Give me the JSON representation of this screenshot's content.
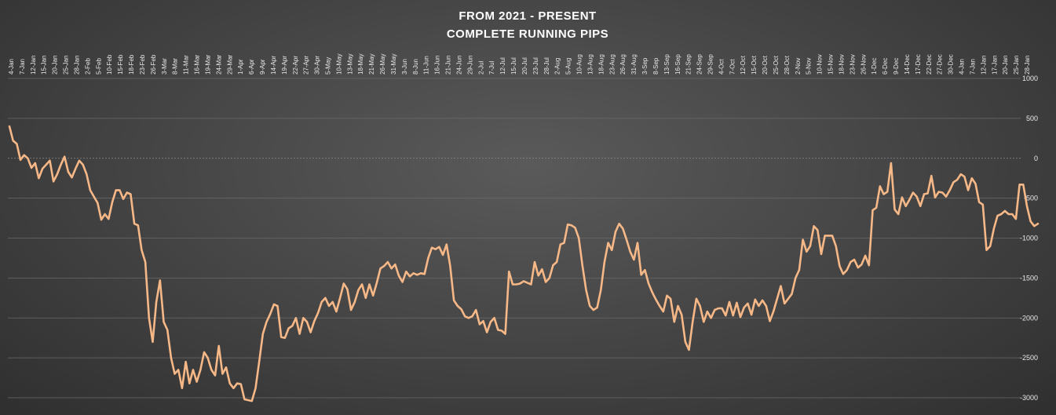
{
  "chart_data": {
    "type": "line",
    "title": "FROM 2021 - PRESENT",
    "subtitle": "COMPLETE RUNNING PIPS",
    "xlabel": "",
    "ylabel": "",
    "ylim": [
      -3000,
      1000
    ],
    "yticks": [
      1000,
      500,
      0,
      -500,
      -1000,
      -1500,
      -2000,
      -2500,
      -3000
    ],
    "grid": true,
    "legend": "none",
    "line_color": "#F7B888",
    "x_tick_labels": [
      "4-Jan",
      "7-Jan",
      "12-Jan",
      "15-Jan",
      "20-Jan",
      "25-Jan",
      "28-Jan",
      "2-Feb",
      "5-Feb",
      "10-Feb",
      "15-Feb",
      "18-Feb",
      "23-Feb",
      "26-Feb",
      "3-Mar",
      "8-Mar",
      "11-Mar",
      "16-Mar",
      "19-Mar",
      "24-Mar",
      "29-Mar",
      "1-Apr",
      "6-Apr",
      "9-Apr",
      "14-Apr",
      "19-Apr",
      "22-Apr",
      "27-Apr",
      "30-Apr",
      "5-May",
      "10-May",
      "13-May",
      "18-May",
      "21-May",
      "26-May",
      "31-May",
      "3-Jun",
      "8-Jun",
      "11-Jun",
      "16-Jun",
      "21-Jun",
      "24-Jun",
      "29-Jun",
      "2-Jul",
      "7-Jul",
      "12-Jul",
      "15-Jul",
      "20-Jul",
      "23-Jul",
      "28-Jul",
      "2-Aug",
      "5-Aug",
      "10-Aug",
      "13-Aug",
      "18-Aug",
      "23-Aug",
      "26-Aug",
      "31-Aug",
      "3-Sep",
      "8-Sep",
      "13-Sep",
      "16-Sep",
      "21-Sep",
      "24-Sep",
      "29-Sep",
      "4-Oct",
      "7-Oct",
      "12-Oct",
      "15-Oct",
      "20-Oct",
      "25-Oct",
      "28-Oct",
      "2-Nov",
      "5-Nov",
      "10-Nov",
      "15-Nov",
      "18-Nov",
      "23-Nov",
      "26-Nov",
      "1-Dec",
      "6-Dec",
      "9-Dec",
      "14-Dec",
      "17-Dec",
      "22-Dec",
      "27-Dec",
      "30-Dec",
      "4-Jan",
      "7-Jan",
      "12-Jan",
      "17-Jan",
      "20-Jan",
      "25-Jan",
      "28-Jan"
    ],
    "series": [
      {
        "values": [
          400,
          220,
          180,
          -20,
          40,
          0,
          -120,
          -60,
          -250,
          -130,
          -80,
          -30,
          -290,
          -200,
          -80,
          20,
          -170,
          -240,
          -130,
          -30,
          -80,
          -200,
          -400,
          -480,
          -560,
          -770,
          -700,
          -760,
          -550,
          -400,
          -400,
          -510,
          -430,
          -450,
          -820,
          -840,
          -1150,
          -1300,
          -2000,
          -2300,
          -1800,
          -1530,
          -2050,
          -2150,
          -2500,
          -2700,
          -2650,
          -2880,
          -2550,
          -2820,
          -2650,
          -2800,
          -2650,
          -2430,
          -2500,
          -2650,
          -2720,
          -2350,
          -2700,
          -2620,
          -2820,
          -2880,
          -2820,
          -2830,
          -3020,
          -3030,
          -3040,
          -2880,
          -2550,
          -2200,
          -2050,
          -1950,
          -1830,
          -1850,
          -2240,
          -2250,
          -2130,
          -2100,
          -2000,
          -2200,
          -2000,
          -2050,
          -2180,
          -2040,
          -1940,
          -1800,
          -1750,
          -1850,
          -1800,
          -1920,
          -1750,
          -1570,
          -1640,
          -1900,
          -1800,
          -1650,
          -1580,
          -1750,
          -1580,
          -1720,
          -1560,
          -1380,
          -1350,
          -1300,
          -1380,
          -1330,
          -1470,
          -1550,
          -1420,
          -1480,
          -1440,
          -1460,
          -1440,
          -1450,
          -1250,
          -1120,
          -1140,
          -1110,
          -1210,
          -1080,
          -1350,
          -1780,
          -1850,
          -1890,
          -1980,
          -2000,
          -1980,
          -1900,
          -2080,
          -2040,
          -2180,
          -2050,
          -2000,
          -2150,
          -2160,
          -2200,
          -1420,
          -1580,
          -1580,
          -1570,
          -1540,
          -1560,
          -1580,
          -1300,
          -1470,
          -1390,
          -1550,
          -1500,
          -1340,
          -1300,
          -1080,
          -1060,
          -830,
          -840,
          -870,
          -1000,
          -1350,
          -1650,
          -1850,
          -1900,
          -1870,
          -1650,
          -1300,
          -1060,
          -1150,
          -920,
          -820,
          -880,
          -1020,
          -1170,
          -1270,
          -1060,
          -1460,
          -1400,
          -1570,
          -1680,
          -1770,
          -1850,
          -1920,
          -1720,
          -1760,
          -2050,
          -1850,
          -1960,
          -2300,
          -2400,
          -2050,
          -1760,
          -1850,
          -2050,
          -1920,
          -2000,
          -1900,
          -1880,
          -1880,
          -1970,
          -1800,
          -1970,
          -1810,
          -1990,
          -1870,
          -1820,
          -1960,
          -1770,
          -1850,
          -1780,
          -1850,
          -2040,
          -1920,
          -1760,
          -1600,
          -1820,
          -1760,
          -1700,
          -1500,
          -1400,
          -1020,
          -1170,
          -1100,
          -850,
          -900,
          -1200,
          -970,
          -970,
          -970,
          -1100,
          -1350,
          -1450,
          -1400,
          -1300,
          -1270,
          -1370,
          -1330,
          -1220,
          -1340,
          -650,
          -620,
          -350,
          -450,
          -420,
          -60,
          -640,
          -700,
          -490,
          -600,
          -520,
          -430,
          -480,
          -600,
          -450,
          -440,
          -220,
          -490,
          -420,
          -430,
          -480,
          -400,
          -300,
          -270,
          -200,
          -230,
          -400,
          -250,
          -320,
          -550,
          -580,
          -1150,
          -1100,
          -880,
          -720,
          -700,
          -660,
          -700,
          -700,
          -760,
          -330,
          -330,
          -600,
          -790,
          -850,
          -820
        ]
      }
    ]
  }
}
